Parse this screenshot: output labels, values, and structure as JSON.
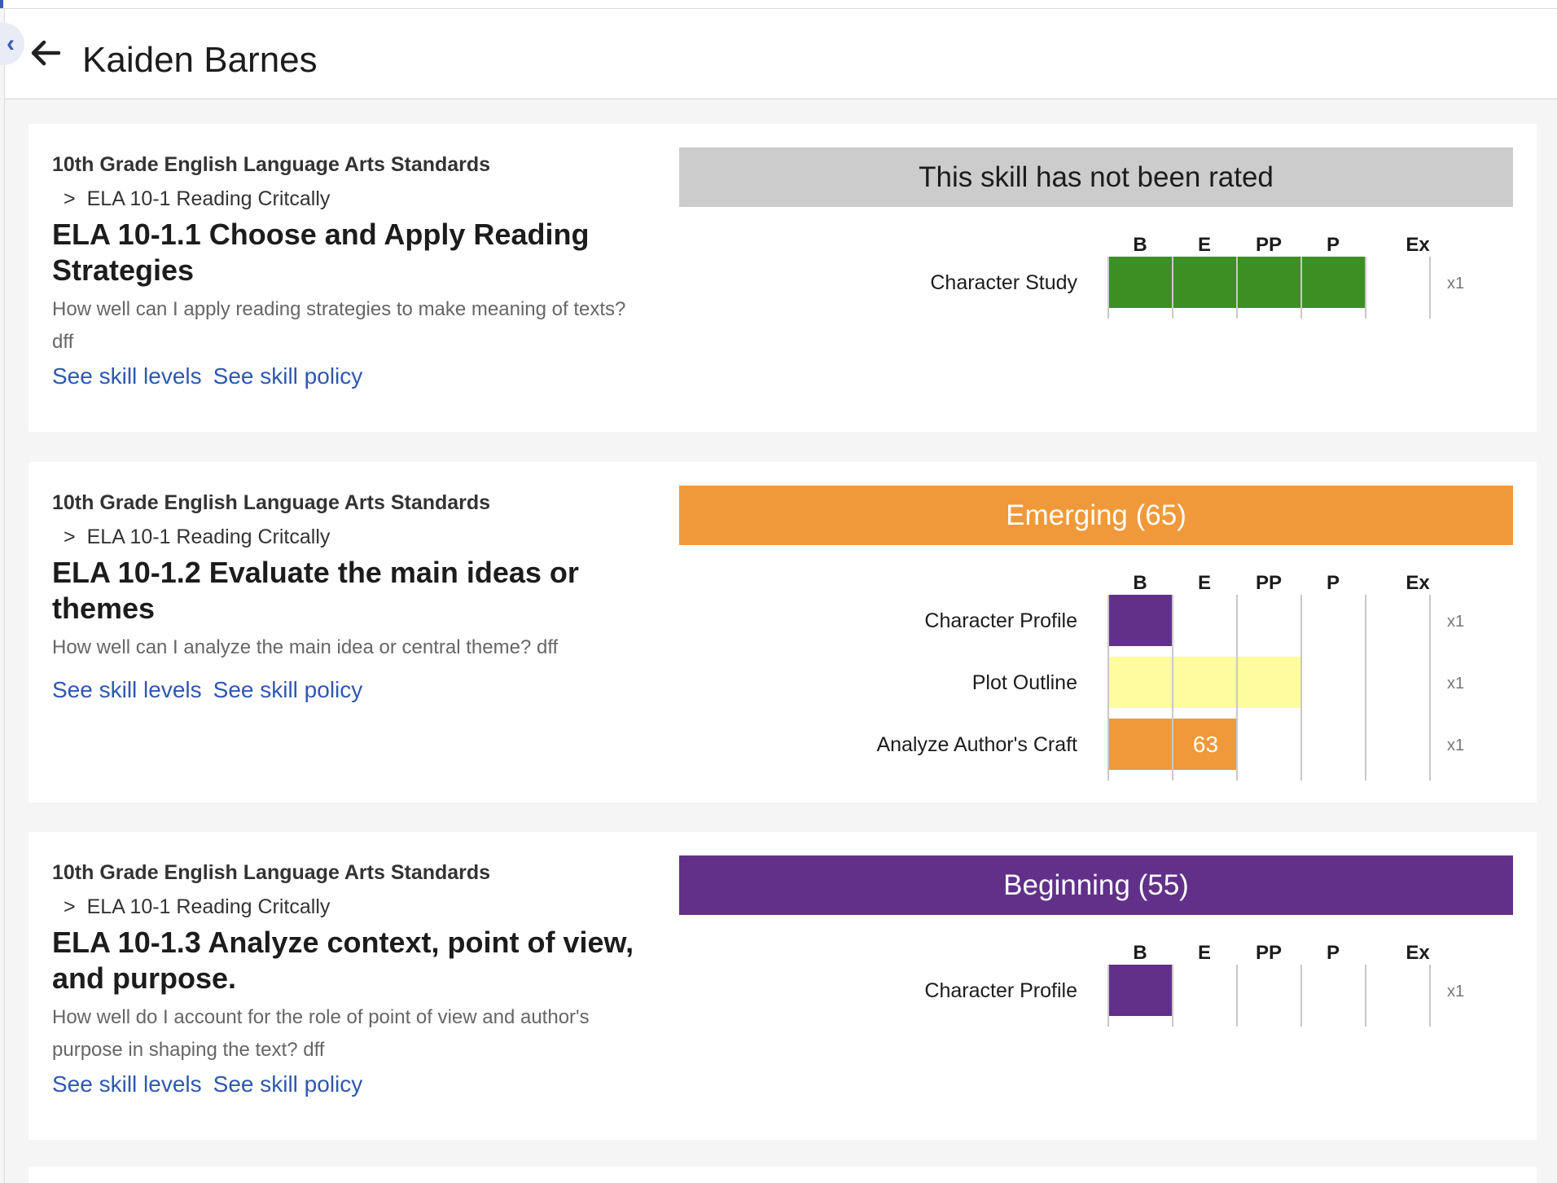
{
  "header": {
    "student_name": "Kaiden Barnes",
    "back_icon": "arrow-left-icon",
    "collapse_icon": "chevron-left-icon",
    "collapse_glyph": "‹"
  },
  "colors": {
    "accent": "#2e58b0",
    "green": "#3d8f23",
    "orange": "#f0993a",
    "purple": "#61318a",
    "yellow": "#fffc9d",
    "gray_banner": "#cccccc"
  },
  "levels": [
    "B",
    "E",
    "PP",
    "P",
    "Ex"
  ],
  "skills": [
    {
      "framework": "10th Grade English Language Arts Standards",
      "unit": "ELA 10-1 Reading Critcally",
      "unit_prefix": ">",
      "title": "ELA 10-1.1 Choose and Apply Reading Strategies",
      "description": "How well can I apply reading strategies to make meaning of texts? dff",
      "link_levels": "See skill levels",
      "link_policy": "See skill policy",
      "status": "This skill has not been rated",
      "status_color": "#cccccc",
      "status_text_color": "#1c1c1c",
      "assessments": [
        {
          "name": "Character Study",
          "weight": "x1",
          "level_fraction": 0.8,
          "color": "#3d8f23",
          "score": ""
        }
      ]
    },
    {
      "framework": "10th Grade English Language Arts Standards",
      "unit": "ELA 10-1 Reading Critcally",
      "unit_prefix": ">",
      "title": "ELA 10-1.2 Evaluate the main ideas or themes",
      "description": "How well can I analyze the main idea or central theme? dff",
      "link_levels": "See skill levels",
      "link_policy": "See skill policy",
      "status": "Emerging (65)",
      "status_color": "#f0993a",
      "status_text_color": "#ffffff",
      "assessments": [
        {
          "name": "Character Profile",
          "weight": "x1",
          "level_fraction": 0.2,
          "color": "#61318a",
          "score": ""
        },
        {
          "name": "Plot Outline",
          "weight": "x1",
          "level_fraction": 0.6,
          "color": "#fffc9d",
          "score": ""
        },
        {
          "name": "Analyze Author's Craft",
          "weight": "x1",
          "level_fraction": 0.4,
          "color": "#f0993a",
          "score": "63"
        }
      ]
    },
    {
      "framework": "10th Grade English Language Arts Standards",
      "unit": "ELA 10-1 Reading Critcally",
      "unit_prefix": ">",
      "title": "ELA 10-1.3 Analyze context, point of view, and purpose.",
      "description": "How well do I account for the role of point of view and author's purpose in shaping the text? dff",
      "link_levels": "See skill levels",
      "link_policy": "See skill policy",
      "status": "Beginning (55)",
      "status_color": "#61318a",
      "status_text_color": "#ffffff",
      "assessments": [
        {
          "name": "Character Profile",
          "weight": "x1",
          "level_fraction": 0.2,
          "color": "#61318a",
          "score": ""
        }
      ]
    }
  ]
}
